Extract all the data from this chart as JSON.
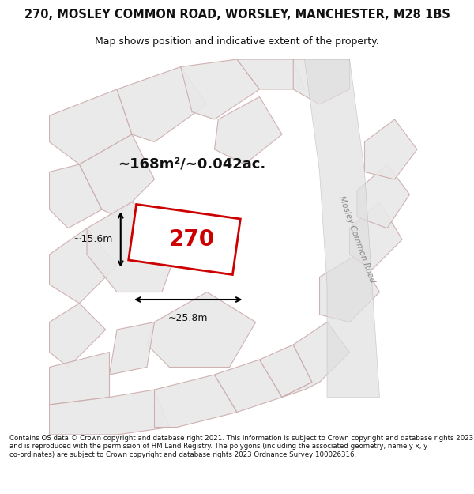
{
  "title_line1": "270, MOSLEY COMMON ROAD, WORSLEY, MANCHESTER, M28 1BS",
  "title_line2": "Map shows position and indicative extent of the property.",
  "footer": "Contains OS data © Crown copyright and database right 2021. This information is subject to Crown copyright and database rights 2023 and is reproduced with the permission of HM Land Registry. The polygons (including the associated geometry, namely x, y co-ordinates) are subject to Crown copyright and database rights 2023 Ordnance Survey 100026316.",
  "area_text": "~168m²/~0.042ac.",
  "property_label": "270",
  "width_label": "~25.8m",
  "height_label": "~15.6m",
  "bg_color": "#f0f0f0",
  "map_bg": "#f5f5f5",
  "property_fill": "#ffffff",
  "property_edge": "#cc0000",
  "neighbor_fill": "#e8e8e8",
  "neighbor_edge": "#ccaaaa",
  "road_color": "#d4d4d4",
  "text_color": "#111111",
  "road_label": "Mosley Common Road",
  "figsize": [
    6.0,
    6.25
  ],
  "dpi": 100
}
